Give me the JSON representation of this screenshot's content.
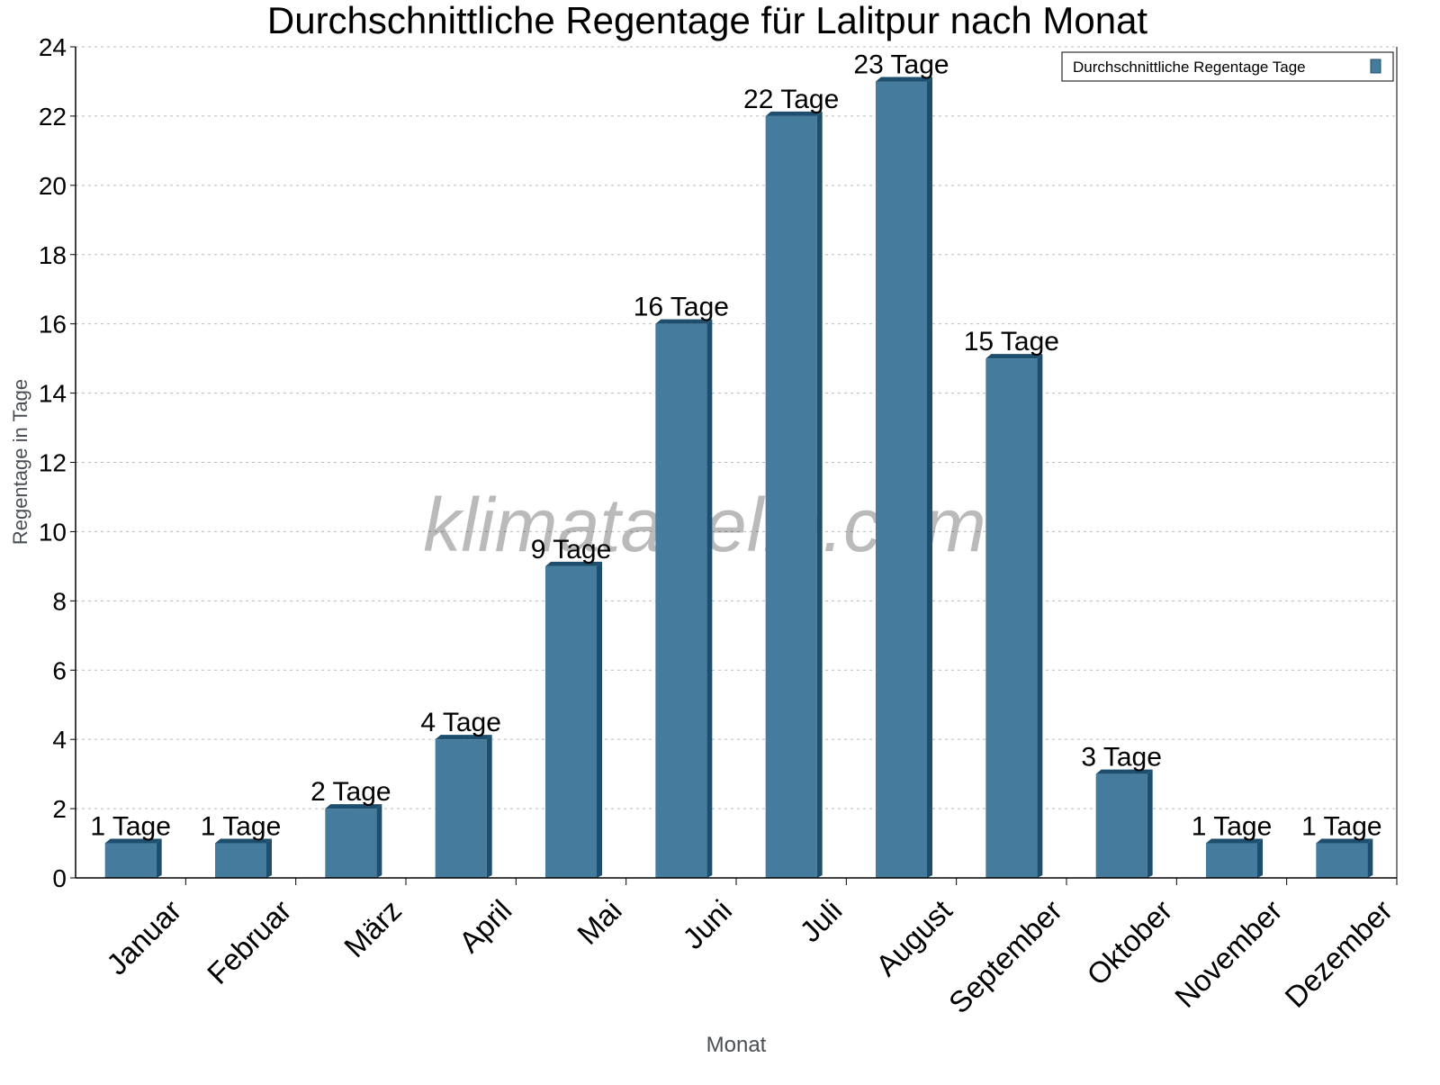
{
  "chart_data": {
    "type": "bar",
    "title": "Durchschnittliche Regentage für Lalitpur nach Monat",
    "xlabel": "Monat",
    "ylabel": "Regentage in Tage",
    "categories": [
      "Januar",
      "Februar",
      "März",
      "April",
      "Mai",
      "Juni",
      "Juli",
      "August",
      "September",
      "Oktober",
      "November",
      "Dezember"
    ],
    "series": [
      {
        "name": "Durchschnittliche Regentage Tage",
        "values": [
          1,
          1,
          2,
          4,
          9,
          16,
          22,
          23,
          15,
          3,
          1,
          1
        ],
        "color": "#457b9d",
        "dark_color": "#1d4e6e"
      }
    ],
    "data_labels": [
      "1 Tage",
      "1 Tage",
      "2 Tage",
      "4 Tage",
      "9 Tage",
      "16 Tage",
      "22 Tage",
      "23 Tage",
      "15 Tage",
      "3 Tage",
      "1 Tage",
      "1 Tage"
    ],
    "ylim": [
      0,
      24
    ],
    "yticks": [
      0,
      2,
      4,
      6,
      8,
      10,
      12,
      14,
      16,
      18,
      20,
      22,
      24
    ],
    "grid": true,
    "legend_position": "top-right",
    "watermark": "klimatabelle.com"
  }
}
